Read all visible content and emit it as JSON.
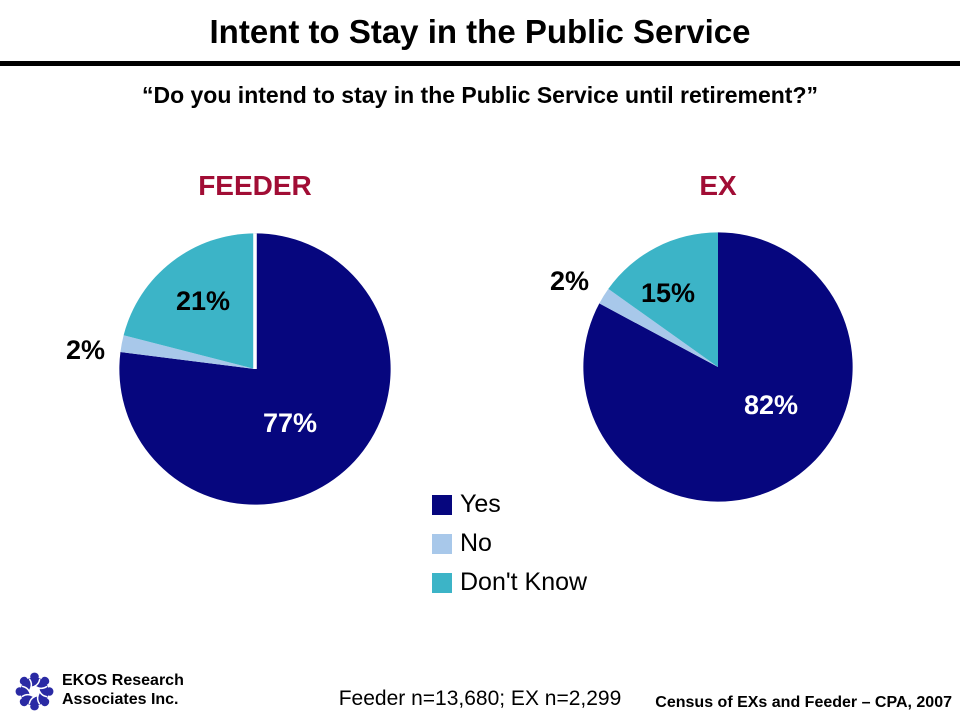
{
  "slide_title": "Intent to Stay in the Public Service",
  "survey_question": "“Do you intend to stay in the Public Service until retirement?”",
  "chart_data": [
    {
      "type": "pie",
      "title": "FEEDER",
      "categories": [
        "Yes",
        "No",
        "Don't Know"
      ],
      "values": [
        77,
        2,
        21
      ],
      "data_labels": [
        "77%",
        "2%",
        "21%"
      ],
      "slice_colors": [
        "#06067e",
        "#a8c8ea",
        "#3cb4c7"
      ],
      "start_angle_deg": -90,
      "direction": "clockwise",
      "top_divider": true
    },
    {
      "type": "pie",
      "title": "EX",
      "categories": [
        "Yes",
        "No",
        "Don't Know"
      ],
      "values": [
        82,
        2,
        15
      ],
      "data_labels": [
        "82%",
        "2%",
        "15%"
      ],
      "slice_colors": [
        "#06067e",
        "#a8c8ea",
        "#3cb4c7"
      ],
      "start_angle_deg": -90,
      "direction": "clockwise",
      "top_divider": false
    }
  ],
  "legend": {
    "position": "bottom-center",
    "items": [
      {
        "label": "Yes",
        "color": "#06067e"
      },
      {
        "label": "No",
        "color": "#a8c8ea"
      },
      {
        "label": "Don't Know",
        "color": "#3cb4c7"
      }
    ]
  },
  "footer": {
    "org_line1": "EKOS Research",
    "org_line2": "Associates Inc.",
    "sample_note": "Feeder n=13,680; EX n=2,299",
    "source_note": "Census of EXs and Feeder – CPA, 2007"
  },
  "colors": {
    "heading_accent": "#a10d35",
    "title_text": "#000000",
    "label_inside_large_slice": "#ffffff",
    "label_outside": "#000000",
    "logo_blue": "#2a2aa4"
  }
}
